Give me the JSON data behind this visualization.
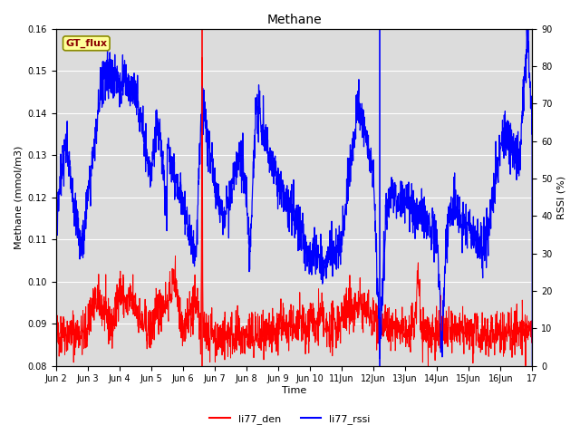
{
  "title": "Methane",
  "ylabel_left": "Methane (mmol/m3)",
  "ylabel_right": "RSSI (%)",
  "xlabel": "Time",
  "ylim_left": [
    0.08,
    0.16
  ],
  "ylim_right": [
    0,
    90
  ],
  "xlim": [
    0,
    15
  ],
  "x_tick_labels": [
    "Jun 2",
    "Jun 3",
    "Jun 4",
    "Jun 5",
    "Jun 6",
    "Jun 7",
    "Jun 8",
    "Jun 9",
    "Jun 10",
    "11Jun",
    "12Jun",
    "13Jun",
    "14Jun",
    "15Jun",
    "16Jun",
    "17"
  ],
  "x_tick_positions": [
    0,
    1,
    2,
    3,
    4,
    5,
    6,
    7,
    8,
    9,
    10,
    11,
    12,
    13,
    14,
    15
  ],
  "gt_flux_label": "GT_flux",
  "gt_flux_color_text": "#8B0000",
  "gt_flux_color_bg": "#FFFF99",
  "gt_flux_color_border": "#8B8B00",
  "legend_labels": [
    "li77_den",
    "li77_rssi"
  ],
  "legend_colors": [
    "red",
    "blue"
  ],
  "vline_red_x": 4.6,
  "vline_blue_x": 10.2,
  "background_color": "#DCDCDC",
  "line_color_red": "red",
  "line_color_blue": "blue"
}
